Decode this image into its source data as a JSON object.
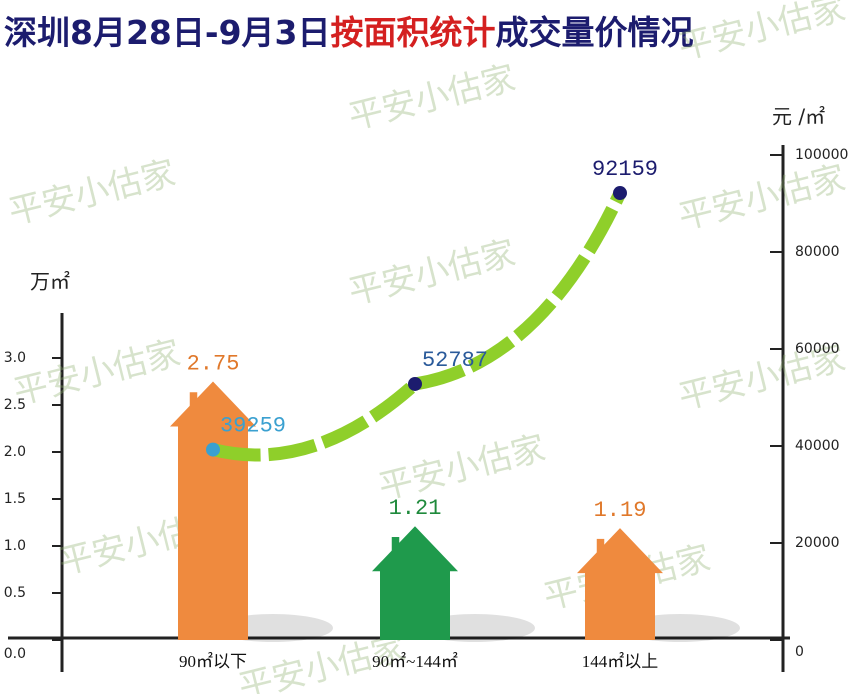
{
  "chart_data": {
    "type": "bar",
    "title": [
      "深圳8月28日-9月3日",
      "按面积统计",
      "成交量价情况"
    ],
    "title_colors": [
      "#1c1c6e",
      "#d42020",
      "#1c1c6e"
    ],
    "watermark": "平安小估家",
    "y_label": "万㎡",
    "y2_label": "元 /㎡",
    "categories": [
      "90㎡以下",
      "90㎡~144㎡",
      "144㎡以上"
    ],
    "ylim": [
      0,
      3.5
    ],
    "yticks": [
      {
        "value": 0,
        "label": "0.0"
      },
      0.5,
      {
        "value": 1,
        "label": "1.0"
      },
      1.5,
      {
        "value": 2,
        "label": "2.0"
      },
      2.5,
      {
        "value": 3,
        "label": "3.0"
      }
    ],
    "y2lim": [
      0,
      100000
    ],
    "y2ticks": [
      0,
      20000,
      40000,
      60000,
      80000,
      100000
    ],
    "series": [
      {
        "type": "bar",
        "colors": [
          "#ef8a3e",
          "#1f9a4c",
          "#ef8a3e"
        ],
        "label_colors": [
          "#e0782a",
          "#1f8a3c",
          "#e0782a"
        ],
        "values": [
          2.75,
          1.21,
          1.19
        ]
      },
      {
        "type": "line",
        "axis": "y2",
        "color": "#8fcf2a",
        "marker_color": "#1c1c6e",
        "label_colors": [
          "#3aa0d0",
          "#2a5a9a",
          "#1c1c6e"
        ],
        "values": [
          39259,
          52787,
          92159
        ]
      }
    ]
  }
}
